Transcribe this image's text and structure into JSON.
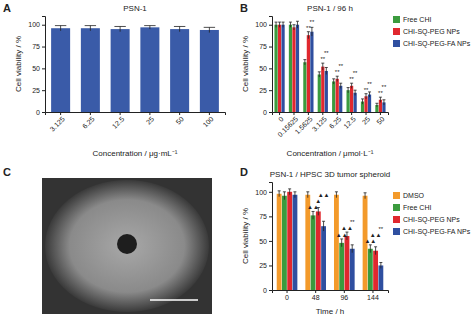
{
  "panel_labels": [
    "A",
    "B",
    "C",
    "D"
  ],
  "chart_data": [
    {
      "type": "bar",
      "title": "PSN-1",
      "x_label": "Concentration / μg·mL⁻¹",
      "y_label": "Cell viability / %",
      "categories": [
        "3.125",
        "6.25",
        "12.5",
        "25",
        "50",
        "100"
      ],
      "values": [
        96,
        96,
        95,
        97,
        95,
        94
      ],
      "errors": [
        3,
        3,
        3,
        2,
        3,
        3
      ],
      "color": "#3a5ba8",
      "ylim": [
        0,
        110
      ],
      "yticks": [
        0,
        25,
        50,
        75,
        100
      ]
    },
    {
      "type": "bar",
      "title": "PSN-1 / 96 h",
      "x_label": "Concentration / μmol·L⁻¹",
      "y_label": "Cell viability / %",
      "categories": [
        "0",
        "0.15625",
        "1.5625",
        "3.125",
        "6.25",
        "12.5",
        "25",
        "50"
      ],
      "series": [
        {
          "name": "Free CHI",
          "color": "#3b9b3e",
          "values": [
            100,
            100,
            57,
            43,
            35,
            25,
            12,
            8
          ],
          "errors": [
            3,
            3,
            3,
            3,
            3,
            3,
            3,
            2
          ]
        },
        {
          "name": "CHI-SQ-PEG NPs",
          "color": "#e0282e",
          "values": [
            100,
            97,
            88,
            52,
            38,
            30,
            18,
            14
          ],
          "errors": [
            3,
            3,
            4,
            4,
            3,
            3,
            3,
            3
          ]
        },
        {
          "name": "CHI-SQ-PEG-FA NPs",
          "color": "#2f4fa0",
          "values": [
            100,
            100,
            92,
            47,
            30,
            22,
            20,
            11
          ],
          "errors": [
            3,
            4,
            5,
            4,
            3,
            3,
            3,
            3
          ]
        }
      ],
      "annotations": [
        {
          "series": 1,
          "category": 2,
          "text": "**"
        },
        {
          "series": 2,
          "category": 2,
          "text": "**"
        },
        {
          "series": 1,
          "category": 3,
          "text": "**"
        },
        {
          "series": 2,
          "category": 3,
          "text": "**"
        },
        {
          "series": 1,
          "category": 4,
          "text": "**"
        },
        {
          "series": 2,
          "category": 4,
          "text": "**"
        },
        {
          "series": 1,
          "category": 5,
          "text": "**"
        },
        {
          "series": 2,
          "category": 5,
          "text": "**"
        },
        {
          "series": 1,
          "category": 6,
          "text": "**"
        },
        {
          "series": 2,
          "category": 6,
          "text": "**"
        },
        {
          "series": 1,
          "category": 7,
          "text": "**"
        },
        {
          "series": 2,
          "category": 7,
          "text": "**"
        }
      ],
      "legend": "right",
      "ylim": [
        0,
        110
      ],
      "yticks": [
        0,
        25,
        50,
        75,
        100
      ]
    },
    {
      "type": "bar",
      "title": "PSN-1 / HPSC 3D tumor spheroid",
      "x_label": "Time / h",
      "y_label": "Cell viability / %",
      "categories": [
        "0",
        "48",
        "96",
        "144"
      ],
      "series": [
        {
          "name": "DMSO",
          "color": "#f39a2b",
          "values": [
            98,
            97,
            97,
            96
          ],
          "errors": [
            3,
            3,
            3,
            3
          ]
        },
        {
          "name": "Free CHI",
          "color": "#3b9b3e",
          "values": [
            96,
            76,
            48,
            42
          ],
          "errors": [
            4,
            4,
            4,
            4
          ]
        },
        {
          "name": "CHI-SQ-PEG NPs",
          "color": "#e0282e",
          "values": [
            100,
            80,
            55,
            40
          ],
          "errors": [
            3,
            4,
            4,
            4
          ]
        },
        {
          "name": "CHI-SQ-PEG-FA NPs",
          "color": "#2f4fa0",
          "values": [
            97,
            65,
            42,
            25
          ],
          "errors": [
            3,
            5,
            4,
            3
          ]
        }
      ],
      "annotations": [
        {
          "series": 1,
          "category": 1,
          "text": "▲▲"
        },
        {
          "series": 2,
          "category": 1,
          "text": "▲"
        },
        {
          "series": 3,
          "category": 1,
          "text": "▲▲"
        },
        {
          "series": 1,
          "category": 2,
          "text": "▲▲"
        },
        {
          "series": 2,
          "category": 2,
          "text": "▲▲"
        },
        {
          "series": 3,
          "category": 2,
          "text": "**"
        },
        {
          "series": 1,
          "category": 3,
          "text": "▲▲"
        },
        {
          "series": 2,
          "category": 3,
          "text": "▲▲"
        },
        {
          "series": 3,
          "category": 3,
          "text": "**"
        }
      ],
      "legend": "right",
      "ylim": [
        0,
        110
      ],
      "yticks": [
        0,
        25,
        50,
        75,
        100
      ]
    }
  ]
}
